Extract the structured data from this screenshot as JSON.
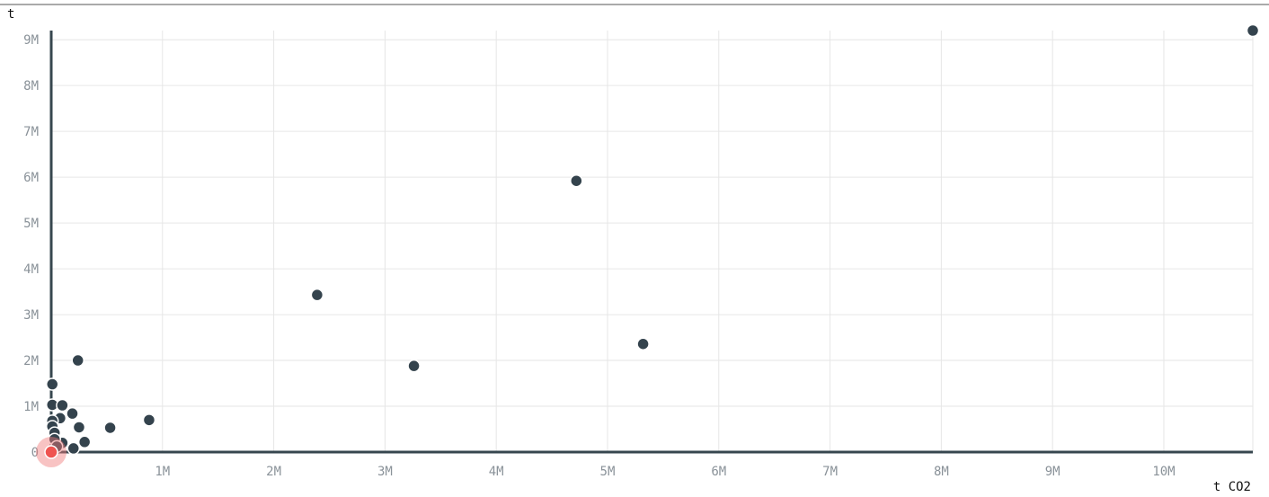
{
  "chart_data": {
    "type": "scatter",
    "xlabel": "t CO2",
    "ylabel": "t",
    "xlim": [
      0,
      10800000
    ],
    "ylim": [
      0,
      9200000
    ],
    "x_ticks": [
      {
        "value": 1000000,
        "label": "1M"
      },
      {
        "value": 2000000,
        "label": "2M"
      },
      {
        "value": 3000000,
        "label": "3M"
      },
      {
        "value": 4000000,
        "label": "4M"
      },
      {
        "value": 5000000,
        "label": "5M"
      },
      {
        "value": 6000000,
        "label": "6M"
      },
      {
        "value": 7000000,
        "label": "7M"
      },
      {
        "value": 8000000,
        "label": "8M"
      },
      {
        "value": 9000000,
        "label": "9M"
      },
      {
        "value": 10000000,
        "label": "10M"
      }
    ],
    "y_ticks": [
      {
        "value": 0,
        "label": "0"
      },
      {
        "value": 1000000,
        "label": "1M"
      },
      {
        "value": 2000000,
        "label": "2M"
      },
      {
        "value": 3000000,
        "label": "3M"
      },
      {
        "value": 4000000,
        "label": "4M"
      },
      {
        "value": 5000000,
        "label": "5M"
      },
      {
        "value": 6000000,
        "label": "6M"
      },
      {
        "value": 7000000,
        "label": "7M"
      },
      {
        "value": 8000000,
        "label": "8M"
      },
      {
        "value": 9000000,
        "label": "9M"
      }
    ],
    "grid": true,
    "points": [
      {
        "x": 10800000,
        "y": 9200000
      },
      {
        "x": 4720000,
        "y": 5920000
      },
      {
        "x": 2390000,
        "y": 3430000
      },
      {
        "x": 5320000,
        "y": 2360000
      },
      {
        "x": 3260000,
        "y": 1880000
      },
      {
        "x": 240000,
        "y": 2000000
      },
      {
        "x": 880000,
        "y": 700000
      },
      {
        "x": 530000,
        "y": 530000
      },
      {
        "x": 10000,
        "y": 1480000
      },
      {
        "x": 10000,
        "y": 1030000
      },
      {
        "x": 100000,
        "y": 1020000
      },
      {
        "x": 190000,
        "y": 840000
      },
      {
        "x": 80000,
        "y": 740000
      },
      {
        "x": 10000,
        "y": 680000
      },
      {
        "x": 250000,
        "y": 540000
      },
      {
        "x": 10000,
        "y": 560000
      },
      {
        "x": 30000,
        "y": 420000
      },
      {
        "x": 300000,
        "y": 220000
      },
      {
        "x": 100000,
        "y": 200000
      },
      {
        "x": 200000,
        "y": 80000
      },
      {
        "x": 30000,
        "y": 280000
      },
      {
        "x": 50000,
        "y": 120000
      }
    ],
    "highlight": {
      "x": 0,
      "y": 0
    },
    "colors": {
      "point": "#34434d",
      "highlight": "#ef5350",
      "axis": "#37474f",
      "grid": "#e6e6e6"
    }
  }
}
